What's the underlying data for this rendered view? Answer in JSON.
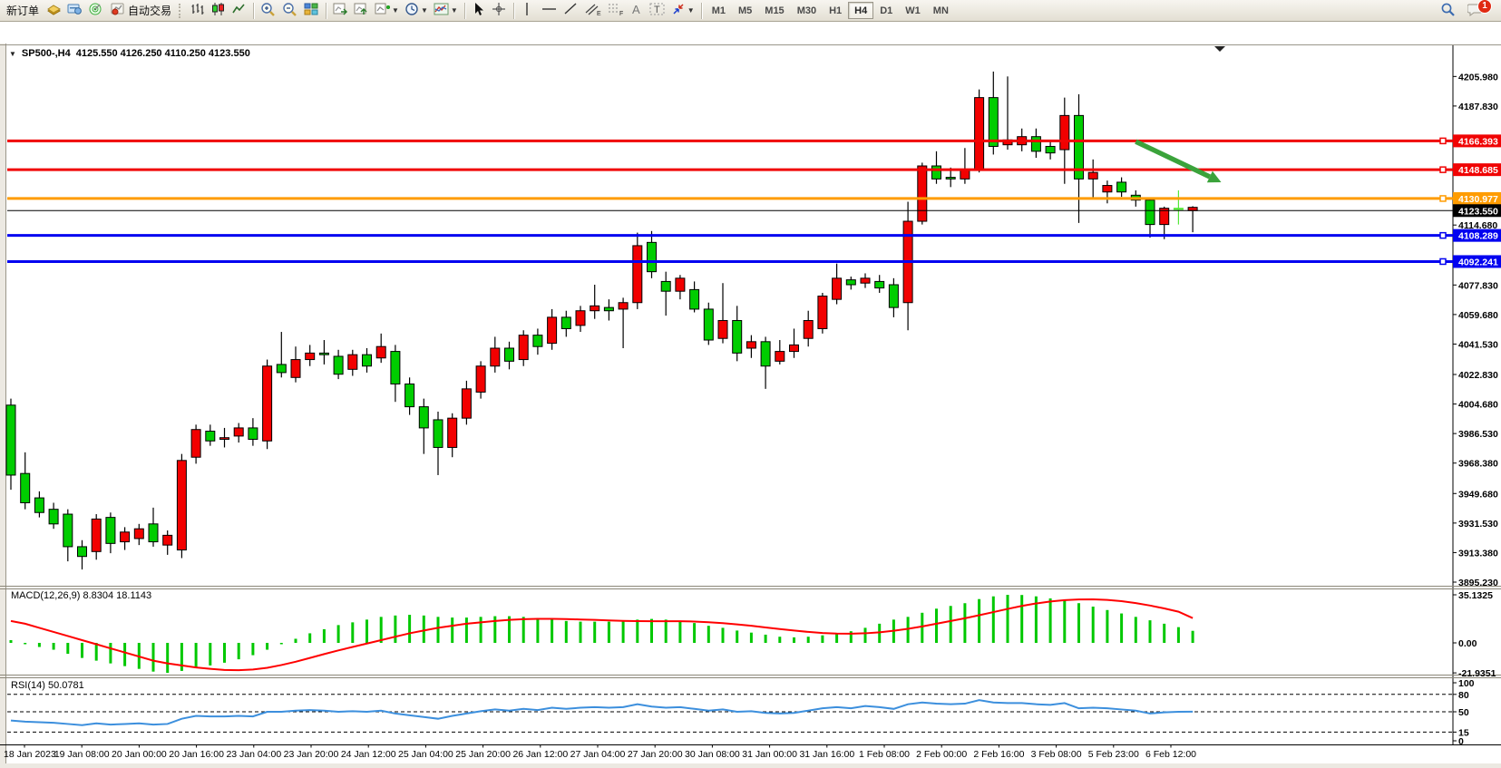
{
  "toolbar": {
    "new_order_label": "新订单",
    "auto_trading_label": "自动交易",
    "timeframes": [
      "M1",
      "M5",
      "M15",
      "M30",
      "H1",
      "H4",
      "D1",
      "W1",
      "MN"
    ],
    "active_timeframe": "H4",
    "notification_count": "1",
    "icons": [
      "new-order-icon",
      "charts-window-icon",
      "radar-icon",
      "autotrading-icon",
      "bar-chart-icon",
      "candlestick-chart-icon",
      "line-chart-icon",
      "zoom-in-icon",
      "zoom-out-icon",
      "tile-windows-icon",
      "chart-forward-icon",
      "chart-step-icon",
      "new-chart-icon",
      "period-clock-icon",
      "indicators-icon",
      "cursor-icon",
      "crosshair-icon",
      "vertical-line-icon",
      "horizontal-line-icon",
      "trendline-icon",
      "equidistant-channel-icon",
      "fibonacci-icon",
      "text-icon",
      "text-label-icon",
      "arrows-icon",
      "search-icon",
      "chat-icon"
    ]
  },
  "chart": {
    "title_symbol": "SP500-,H4",
    "title_ohlc": "4125.550 4126.250 4110.250 4123.550"
  },
  "chart_data": {
    "type": "candlestick",
    "symbol": "SP500-",
    "timeframe": "H4",
    "color_convention": "red = bullish, green = bearish (CN convention)",
    "bull_color": "#f20000",
    "bear_color": "#00cd00",
    "lime_color": "#55e838",
    "current_candle": {
      "open": 4125.55,
      "high": 4126.25,
      "low": 4110.25,
      "close": 4123.55
    },
    "x_labels": [
      "18 Jan 2023",
      "19 Jan 08:00",
      "20 Jan 00:00",
      "20 Jan 16:00",
      "23 Jan 04:00",
      "23 Jan 20:00",
      "24 Jan 12:00",
      "25 Jan 04:00",
      "25 Jan 20:00",
      "26 Jan 12:00",
      "27 Jan 04:00",
      "27 Jan 20:00",
      "30 Jan 08:00",
      "31 Jan 00:00",
      "31 Jan 16:00",
      "1 Feb 08:00",
      "2 Feb 00:00",
      "2 Feb 16:00",
      "3 Feb 08:00",
      "5 Feb 23:00",
      "6 Feb 12:00"
    ],
    "y_ticks": [
      "4205.980",
      "4187.830",
      "4114.680",
      "4077.830",
      "4059.680",
      "4041.530",
      "4022.830",
      "4004.680",
      "3986.530",
      "3968.380",
      "3949.680",
      "3931.530",
      "3913.380",
      "3895.230"
    ],
    "ylim": [
      3893.0,
      4224.0
    ],
    "hlines": [
      {
        "price": 4166.393,
        "label": "4166.393",
        "color": "#f00404",
        "width": 3,
        "marker": true
      },
      {
        "price": 4148.685,
        "label": "4148.685",
        "color": "#f00404",
        "width": 3,
        "marker": true
      },
      {
        "price": 4130.977,
        "label": "4130.977",
        "color": "#ff9c00",
        "width": 3,
        "marker": true
      },
      {
        "price": 4123.55,
        "label": "4123.550",
        "color": "#000000",
        "width": 1,
        "marker": false
      },
      {
        "price": 4108.289,
        "label": "4108.289",
        "color": "#0202f0",
        "width": 3,
        "marker": true
      },
      {
        "price": 4092.241,
        "label": "4092.241",
        "color": "#0202f0",
        "width": 3,
        "marker": true
      }
    ],
    "candles": [
      [
        4004,
        4008,
        3952,
        3961
      ],
      [
        3962,
        3975,
        3940,
        3944
      ],
      [
        3947,
        3951,
        3935,
        3938
      ],
      [
        3940,
        3944,
        3928,
        3931
      ],
      [
        3937,
        3940,
        3908,
        3917
      ],
      [
        3917,
        3921,
        3903,
        3911
      ],
      [
        3914,
        3937,
        3909,
        3934
      ],
      [
        3935,
        3938,
        3913,
        3919
      ],
      [
        3920,
        3929,
        3915,
        3926
      ],
      [
        3922,
        3931,
        3918,
        3928
      ],
      [
        3931,
        3941,
        3917,
        3920
      ],
      [
        3918,
        3927,
        3912,
        3924
      ],
      [
        3915,
        3974,
        3910,
        3970
      ],
      [
        3972,
        3992,
        3968,
        3989
      ],
      [
        3988,
        3992,
        3979,
        3982
      ],
      [
        3983,
        3990,
        3978,
        3984
      ],
      [
        3985,
        3993,
        3981,
        3990
      ],
      [
        3990,
        3996,
        3979,
        3983
      ],
      [
        3982,
        4032,
        3977,
        4028
      ],
      [
        4029,
        4049,
        4021,
        4024
      ],
      [
        4021,
        4040,
        4018,
        4032
      ],
      [
        4032,
        4041,
        4028,
        4036
      ],
      [
        4036,
        4044,
        4029,
        4035
      ],
      [
        4034,
        4038,
        4020,
        4023
      ],
      [
        4026,
        4038,
        4022,
        4035
      ],
      [
        4035,
        4039,
        4024,
        4028
      ],
      [
        4033,
        4048,
        4030,
        4040
      ],
      [
        4037,
        4041,
        4006,
        4017
      ],
      [
        4017,
        4021,
        3998,
        4003
      ],
      [
        4003,
        4008,
        3974,
        3990
      ],
      [
        3995,
        4000,
        3961,
        3978
      ],
      [
        3978,
        3999,
        3972,
        3996
      ],
      [
        3996,
        4019,
        3992,
        4014
      ],
      [
        4012,
        4031,
        4008,
        4028
      ],
      [
        4028,
        4046,
        4024,
        4039
      ],
      [
        4039,
        4043,
        4026,
        4031
      ],
      [
        4032,
        4050,
        4028,
        4047
      ],
      [
        4047,
        4051,
        4035,
        4040
      ],
      [
        4042,
        4063,
        4038,
        4058
      ],
      [
        4058,
        4062,
        4046,
        4051
      ],
      [
        4053,
        4065,
        4049,
        4062
      ],
      [
        4062,
        4078,
        4057,
        4065
      ],
      [
        4064,
        4069,
        4056,
        4062
      ],
      [
        4063,
        4070,
        4039,
        4067
      ],
      [
        4067,
        4110,
        4063,
        4102
      ],
      [
        4104,
        4111,
        4082,
        4086
      ],
      [
        4080,
        4086,
        4059,
        4074
      ],
      [
        4074,
        4084,
        4069,
        4082
      ],
      [
        4075,
        4080,
        4061,
        4063
      ],
      [
        4063,
        4067,
        4041,
        4044
      ],
      [
        4045,
        4079,
        4042,
        4056
      ],
      [
        4056,
        4065,
        4031,
        4036
      ],
      [
        4039,
        4047,
        4033,
        4043
      ],
      [
        4043,
        4046,
        4014,
        4028
      ],
      [
        4031,
        4044,
        4029,
        4037
      ],
      [
        4037,
        4051,
        4033,
        4041
      ],
      [
        4045,
        4062,
        4040,
        4056
      ],
      [
        4051,
        4073,
        4048,
        4071
      ],
      [
        4069,
        4091,
        4066,
        4082
      ],
      [
        4081,
        4083,
        4075,
        4078
      ],
      [
        4079,
        4085,
        4076,
        4082
      ],
      [
        4080,
        4084,
        4073,
        4076
      ],
      [
        4078,
        4082,
        4058,
        4064
      ],
      [
        4067,
        4129,
        4050,
        4117
      ],
      [
        4117,
        4153,
        4115,
        4151
      ],
      [
        4151,
        4160,
        4140,
        4143
      ],
      [
        4144,
        4150,
        4138,
        4143
      ],
      [
        4143,
        4162,
        4140,
        4149
      ],
      [
        4149,
        4198,
        4147,
        4193
      ],
      [
        4193,
        4209,
        4158,
        4163
      ],
      [
        4164,
        4206,
        4161,
        4167
      ],
      [
        4164,
        4174,
        4160,
        4169
      ],
      [
        4169,
        4174,
        4156,
        4160
      ],
      [
        4163,
        4166,
        4155,
        4159
      ],
      [
        4161,
        4193,
        4140,
        4182
      ],
      [
        4182,
        4195,
        4116,
        4143
      ],
      [
        4143,
        4155,
        4131,
        4147
      ],
      [
        4135,
        4142,
        4128,
        4139
      ],
      [
        4141,
        4144,
        4132,
        4135
      ],
      [
        4133,
        4136,
        4126,
        4130
      ],
      [
        4130,
        4131,
        4107,
        4115
      ],
      [
        4115,
        4126,
        4106,
        4125
      ],
      [
        4125,
        4136,
        4115,
        4125
      ],
      [
        4125.55,
        4126.25,
        4110.25,
        4123.55
      ]
    ],
    "color_overrides": {
      "82": "lime",
      "83": "bull"
    },
    "arrow_annotation": {
      "from_index": 79,
      "from_price": 4166,
      "to_index": 85,
      "to_price": 4141,
      "color": "#3ba33b"
    },
    "macd": {
      "label": "MACD(12,26,9)",
      "values_text": "8.8304 18.1143",
      "scale_labels": [
        "35.1325",
        "0.00",
        "-21.9351"
      ],
      "hist_color": "#00c800",
      "signal_color": "#ff0000",
      "histogram": [
        2,
        -1,
        -3,
        -5,
        -8,
        -11,
        -13,
        -15,
        -17,
        -19,
        -21,
        -21.9,
        -20.5,
        -18.5,
        -16.5,
        -14.5,
        -12,
        -9,
        -5,
        -1,
        3,
        7,
        10,
        13,
        15,
        17,
        19,
        20,
        20.5,
        20,
        19,
        18.5,
        18.5,
        19,
        19.5,
        19.5,
        19,
        18,
        17,
        16,
        15.5,
        15.5,
        15.5,
        16,
        17,
        17.5,
        17,
        16,
        14.5,
        12.5,
        11,
        9,
        7.5,
        6,
        4.5,
        4,
        4.5,
        5.5,
        7,
        8.5,
        11,
        14,
        17,
        19,
        22,
        25,
        27,
        29,
        32,
        34,
        35.1,
        35,
        34,
        32.5,
        31,
        29,
        26.5,
        24,
        21.5,
        19,
        16.5,
        14,
        11.5,
        8.8
      ],
      "signal": [
        16,
        14,
        11,
        8,
        5,
        2,
        -1,
        -4,
        -7,
        -10,
        -13,
        -15,
        -16.5,
        -18,
        -19,
        -19.8,
        -20,
        -19.5,
        -18.2,
        -16.2,
        -13.8,
        -11,
        -8.2,
        -5.5,
        -3,
        -0.5,
        2,
        4.5,
        7,
        9,
        11,
        12.5,
        14,
        15,
        16,
        16.8,
        17.3,
        17.6,
        17.6,
        17.4,
        17.1,
        16.8,
        16.4,
        16.1,
        15.9,
        15.8,
        15.8,
        15.8,
        15.6,
        15.1,
        14.4,
        13.5,
        12.5,
        11.3,
        10.1,
        9,
        8,
        7.2,
        6.8,
        6.7,
        7,
        7.7,
        8.9,
        10.3,
        12,
        14,
        16,
        18,
        20.2,
        22.5,
        24.8,
        27,
        28.8,
        30.2,
        31.2,
        31.7,
        31.8,
        31.4,
        30.5,
        29.1,
        27.3,
        25.2,
        22.8,
        18.1
      ]
    },
    "rsi": {
      "label": "RSI(14)",
      "value_text": "50.0781",
      "scale_labels": [
        "100",
        "80",
        "50",
        "15",
        "0"
      ],
      "levels": [
        80,
        50,
        15
      ],
      "color": "#3c8fdd",
      "series": [
        35,
        33,
        32,
        31,
        29,
        27,
        30,
        28,
        29,
        30,
        28,
        29,
        38,
        43,
        42,
        42,
        43,
        42,
        50,
        50,
        52,
        53,
        52,
        50,
        51,
        50,
        52,
        47,
        44,
        41,
        38,
        43,
        47,
        51,
        54,
        52,
        55,
        53,
        57,
        55,
        57,
        58,
        57,
        58,
        63,
        59,
        57,
        58,
        55,
        52,
        54,
        50,
        51,
        48,
        47,
        48,
        52,
        56,
        58,
        56,
        60,
        58,
        55,
        63,
        66,
        64,
        63,
        64,
        70,
        66,
        65,
        65,
        63,
        62,
        65,
        56,
        57,
        56,
        54,
        52,
        47,
        49,
        50,
        50.1
      ]
    }
  }
}
